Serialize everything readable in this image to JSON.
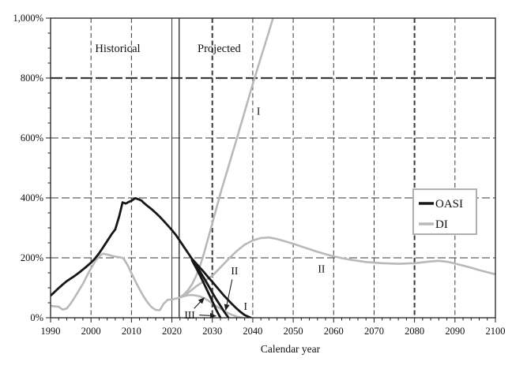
{
  "chart_data": {
    "type": "line",
    "title": "",
    "xlabel": "Calendar year",
    "ylabel": "",
    "x_range": [
      1990,
      2100
    ],
    "x_tick_interval": 10,
    "x_minor_tick_interval": 2,
    "x_tick_labels": [
      "1990",
      "2000",
      "2010",
      "2020",
      "2030",
      "2040",
      "2050",
      "2060",
      "2070",
      "2080",
      "2090",
      "2100"
    ],
    "y_range_pct": [
      0,
      1000
    ],
    "y_tick_interval": 200,
    "y_minor_tick_interval": 50,
    "y_tick_labels": [
      "0%",
      "200%",
      "400%",
      "600%",
      "800%",
      "1,000%"
    ],
    "grid": true,
    "divider_year": 2021.8,
    "region_labels": [
      {
        "id": "historical",
        "text": "Historical",
        "year": 2006.6,
        "pct": 900
      },
      {
        "id": "projected",
        "text": "Projected",
        "year": 2031.7,
        "pct": 900
      }
    ],
    "legend": {
      "position": "right-middle",
      "entries": [
        {
          "label": "OASI",
          "color_key": "oasi"
        },
        {
          "label": "DI",
          "color_key": "di"
        }
      ]
    },
    "series": [
      {
        "id": "di-historical",
        "name": "DI (historical + pre-split)",
        "color_key": "di",
        "points": [
          [
            1990,
            40
          ],
          [
            1991,
            38
          ],
          [
            1992,
            37
          ],
          [
            1993,
            27
          ],
          [
            1994,
            31
          ],
          [
            1995,
            48
          ],
          [
            1996,
            69
          ],
          [
            1997,
            91
          ],
          [
            1998,
            113
          ],
          [
            1999,
            140
          ],
          [
            2000,
            165
          ],
          [
            2001,
            188
          ],
          [
            2002,
            205
          ],
          [
            2003,
            214
          ],
          [
            2004,
            211
          ],
          [
            2005,
            207
          ],
          [
            2006,
            204
          ],
          [
            2007,
            202
          ],
          [
            2008,
            199
          ],
          [
            2009,
            177
          ],
          [
            2010,
            149
          ],
          [
            2011,
            121
          ],
          [
            2012,
            95
          ],
          [
            2013,
            71
          ],
          [
            2014,
            51
          ],
          [
            2015,
            35
          ],
          [
            2016,
            26
          ],
          [
            2017,
            25
          ],
          [
            2018,
            47
          ],
          [
            2019,
            60
          ],
          [
            2020,
            61
          ],
          [
            2021,
            64
          ],
          [
            2022,
            68
          ]
        ]
      },
      {
        "id": "di-alt-i",
        "name": "DI alternative I",
        "color_key": "di",
        "points": [
          [
            2022,
            68
          ],
          [
            2023,
            78
          ],
          [
            2024,
            92
          ],
          [
            2025,
            112
          ],
          [
            2026,
            140
          ],
          [
            2027,
            175
          ],
          [
            2028,
            218
          ],
          [
            2030,
            315
          ],
          [
            2032,
            415
          ],
          [
            2034,
            505
          ],
          [
            2036,
            595
          ],
          [
            2038,
            688
          ],
          [
            2040,
            780
          ],
          [
            2042,
            868
          ],
          [
            2044,
            955
          ],
          [
            2046,
            1045
          ]
        ]
      },
      {
        "id": "di-alt-ii",
        "name": "DI alternative II",
        "color_key": "di",
        "points": [
          [
            2022,
            68
          ],
          [
            2024,
            83
          ],
          [
            2026,
            105
          ],
          [
            2028,
            122
          ],
          [
            2030,
            140
          ],
          [
            2032,
            168
          ],
          [
            2034,
            196
          ],
          [
            2036,
            222
          ],
          [
            2038,
            244
          ],
          [
            2040,
            258
          ],
          [
            2042,
            266
          ],
          [
            2044,
            268
          ],
          [
            2046,
            263
          ],
          [
            2048,
            255
          ],
          [
            2050,
            247
          ],
          [
            2052,
            238
          ],
          [
            2054,
            229
          ],
          [
            2056,
            220
          ],
          [
            2058,
            212
          ],
          [
            2060,
            205
          ],
          [
            2062,
            199
          ],
          [
            2064,
            194
          ],
          [
            2066,
            190
          ],
          [
            2068,
            186
          ],
          [
            2070,
            184
          ],
          [
            2072,
            182
          ],
          [
            2074,
            181
          ],
          [
            2076,
            180
          ],
          [
            2078,
            181
          ],
          [
            2080,
            182
          ],
          [
            2082,
            185
          ],
          [
            2084,
            188
          ],
          [
            2086,
            190
          ],
          [
            2088,
            187
          ],
          [
            2090,
            181
          ],
          [
            2092,
            174
          ],
          [
            2094,
            167
          ],
          [
            2096,
            159
          ],
          [
            2098,
            152
          ],
          [
            2100,
            145
          ]
        ]
      },
      {
        "id": "di-alt-iii",
        "name": "DI alternative III",
        "color_key": "di",
        "points": [
          [
            2022,
            68
          ],
          [
            2023,
            72
          ],
          [
            2024,
            75
          ],
          [
            2025,
            76
          ],
          [
            2026,
            74
          ],
          [
            2027,
            71
          ],
          [
            2028,
            65
          ],
          [
            2029,
            57
          ],
          [
            2030,
            48
          ],
          [
            2031,
            39
          ],
          [
            2032,
            30
          ],
          [
            2033,
            22
          ],
          [
            2034,
            15
          ],
          [
            2035,
            9
          ],
          [
            2036,
            4
          ],
          [
            2037.5,
            0
          ]
        ]
      },
      {
        "id": "oasi-historical",
        "name": "OASI (historical + pre-split)",
        "color_key": "oasi",
        "points": [
          [
            1990,
            74
          ],
          [
            1991,
            86
          ],
          [
            1992,
            99
          ],
          [
            1993,
            111
          ],
          [
            1994,
            122
          ],
          [
            1995,
            131
          ],
          [
            1996,
            140
          ],
          [
            1997,
            150
          ],
          [
            1998,
            161
          ],
          [
            1999,
            172
          ],
          [
            2000,
            184
          ],
          [
            2001,
            198
          ],
          [
            2002,
            215
          ],
          [
            2003,
            235
          ],
          [
            2004,
            256
          ],
          [
            2005,
            277
          ],
          [
            2006,
            295
          ],
          [
            2007,
            340
          ],
          [
            2007.8,
            385
          ],
          [
            2008.6,
            381
          ],
          [
            2009.4,
            387
          ],
          [
            2010.1,
            391
          ],
          [
            2010.9,
            399
          ],
          [
            2011.6,
            396
          ],
          [
            2012.5,
            391
          ],
          [
            2013,
            384
          ],
          [
            2014,
            373
          ],
          [
            2015,
            362
          ],
          [
            2016,
            350
          ],
          [
            2017,
            337
          ],
          [
            2018,
            323
          ],
          [
            2019,
            308
          ],
          [
            2020,
            293
          ],
          [
            2021,
            276
          ],
          [
            2022,
            256
          ],
          [
            2023,
            236
          ],
          [
            2024,
            216
          ],
          [
            2025,
            196
          ]
        ]
      },
      {
        "id": "oasi-alt-i",
        "name": "OASI alternative I",
        "color_key": "oasi",
        "points": [
          [
            2025,
            196
          ],
          [
            2026,
            181
          ],
          [
            2027,
            166
          ],
          [
            2028,
            151
          ],
          [
            2029,
            135
          ],
          [
            2030,
            120
          ],
          [
            2031,
            104
          ],
          [
            2032,
            88
          ],
          [
            2033,
            72
          ],
          [
            2034,
            58
          ],
          [
            2035,
            44
          ],
          [
            2036,
            31
          ],
          [
            2037,
            19
          ],
          [
            2038,
            9
          ],
          [
            2039.5,
            0
          ]
        ]
      },
      {
        "id": "oasi-alt-ii",
        "name": "OASI alternative II",
        "color_key": "oasi",
        "points": [
          [
            2025,
            194
          ],
          [
            2026,
            174
          ],
          [
            2027,
            153
          ],
          [
            2028,
            131
          ],
          [
            2029,
            108
          ],
          [
            2030,
            84
          ],
          [
            2031,
            61
          ],
          [
            2032,
            40
          ],
          [
            2033,
            19
          ],
          [
            2034,
            0
          ]
        ]
      },
      {
        "id": "oasi-alt-iii",
        "name": "OASI alternative III",
        "color_key": "oasi",
        "points": [
          [
            2025,
            191
          ],
          [
            2026,
            166
          ],
          [
            2027,
            140
          ],
          [
            2028,
            112
          ],
          [
            2029,
            84
          ],
          [
            2030,
            55
          ],
          [
            2031,
            26
          ],
          [
            2032,
            0
          ]
        ]
      }
    ],
    "annotations": [
      {
        "id": "di-alt-i-label",
        "text": "I",
        "year": 2041.4,
        "pct": 690,
        "arrows": []
      },
      {
        "id": "di-alt-ii-label",
        "text": "II",
        "year": 2057.0,
        "pct": 163,
        "arrows": []
      },
      {
        "id": "oasi-alt-i-label",
        "text": "I",
        "year": 2038.2,
        "pct": 38,
        "arrows": []
      },
      {
        "id": "oasi-alt-ii-label",
        "text": "II",
        "year": 2035.5,
        "pct": 157,
        "arrows": [
          {
            "from_year": 2034.9,
            "from_pct": 128,
            "to_year": 2033.3,
            "to_pct": 25
          }
        ]
      },
      {
        "id": "alt-iii-label",
        "text": "III",
        "year": 2024.4,
        "pct": 9,
        "arrows": [
          {
            "from_year": 2026.8,
            "from_pct": 9,
            "to_year": 2030.9,
            "to_pct": 6
          },
          {
            "from_year": 2025.5,
            "from_pct": 31,
            "to_year": 2028.0,
            "to_pct": 67
          }
        ]
      }
    ],
    "colors": {
      "oasi": "#171717",
      "di": "#b9b9b9",
      "grid": "#3a3a3a",
      "axis": "#1f1f1f",
      "background": "#ffffff",
      "legend_border": "#a8a8a8"
    }
  }
}
